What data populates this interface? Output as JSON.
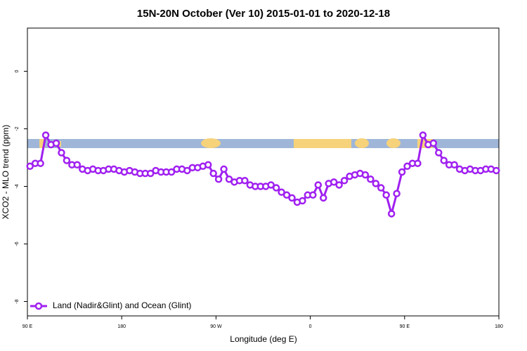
{
  "chart_data": {
    "type": "line",
    "title": "15N-20N October (Ver 10)   2015-01-01 to 2020-12-18",
    "x_label": "Longitude (deg E)",
    "y_label": "XCO2 - MLO trend (ppm)",
    "xlim": [
      90,
      540
    ],
    "xticks": [
      {
        "value": 90,
        "label": "90 E"
      },
      180,
      {
        "value": 270,
        "label": "90 W"
      },
      {
        "value": 360,
        "label": "0"
      },
      {
        "value": 450,
        "label": "90 E"
      },
      {
        "value": 540,
        "label": "180"
      }
    ],
    "ylim": [
      -8.5,
      1.5
    ],
    "yticks": [
      0,
      -2,
      -4,
      -6,
      -8
    ],
    "legend": "bottomleft",
    "x": [
      92.5,
      97.5,
      102.5,
      107.5,
      112.5,
      117.5,
      122.5,
      127.5,
      132.5,
      137.5,
      142.5,
      147.5,
      152.5,
      157.5,
      162.5,
      167.5,
      172.5,
      177.5,
      182.5,
      187.5,
      192.5,
      197.5,
      202.5,
      207.5,
      212.5,
      217.5,
      222.5,
      227.5,
      232.5,
      237.5,
      242.5,
      247.5,
      252.5,
      257.5,
      262.5,
      267.5,
      272.5,
      277.5,
      282.5,
      287.5,
      292.5,
      297.5,
      302.5,
      307.5,
      312.5,
      317.5,
      322.5,
      327.5,
      332.5,
      337.5,
      342.5,
      347.5,
      352.5,
      357.5,
      362.5,
      367.5,
      372.5,
      377.5,
      382.5,
      387.5,
      392.5,
      397.5,
      402.5,
      407.5,
      412.5,
      417.5,
      422.5,
      427.5,
      432.5,
      437.5,
      442.5,
      447.5,
      452.5,
      457.5,
      462.5,
      467.5,
      472.5,
      477.5,
      482.5,
      487.5,
      492.5,
      497.5,
      502.5,
      507.5,
      512.5,
      517.5,
      522.5,
      527.5,
      532.5,
      537.5
    ],
    "series": [
      {
        "name": "Land (Nadir&Glint) and Ocean (Glint)",
        "color": "#a020f0",
        "values": [
          -3.3,
          -3.2,
          -3.2,
          -2.22,
          -2.55,
          -2.5,
          -2.83,
          -3.1,
          -3.25,
          -3.25,
          -3.4,
          -3.45,
          -3.4,
          -3.45,
          -3.45,
          -3.4,
          -3.4,
          -3.45,
          -3.5,
          -3.45,
          -3.5,
          -3.55,
          -3.55,
          -3.55,
          -3.45,
          -3.5,
          -3.5,
          -3.5,
          -3.4,
          -3.4,
          -3.45,
          -3.35,
          -3.35,
          -3.3,
          -3.25,
          -3.55,
          -3.75,
          -3.4,
          -3.75,
          -3.85,
          -3.8,
          -3.8,
          -3.95,
          -4.0,
          -4.0,
          -4.0,
          -3.95,
          -4.05,
          -4.2,
          -4.3,
          -4.4,
          -4.55,
          -4.5,
          -4.3,
          -4.3,
          -3.95,
          -4.4,
          -3.9,
          -3.85,
          -3.95,
          -3.8,
          -3.65,
          -3.6,
          -3.55,
          -3.6,
          -3.75,
          -3.9,
          -4.05,
          -4.3,
          -4.95,
          -4.25,
          -3.5,
          -3.3,
          -3.2,
          -3.2,
          -2.22,
          -2.55,
          -2.5,
          -2.83,
          -3.1,
          -3.25,
          -3.25,
          -3.4,
          -3.45,
          -3.4,
          -3.45,
          -3.45,
          -3.4,
          -3.4,
          -3.45
        ]
      }
    ]
  }
}
